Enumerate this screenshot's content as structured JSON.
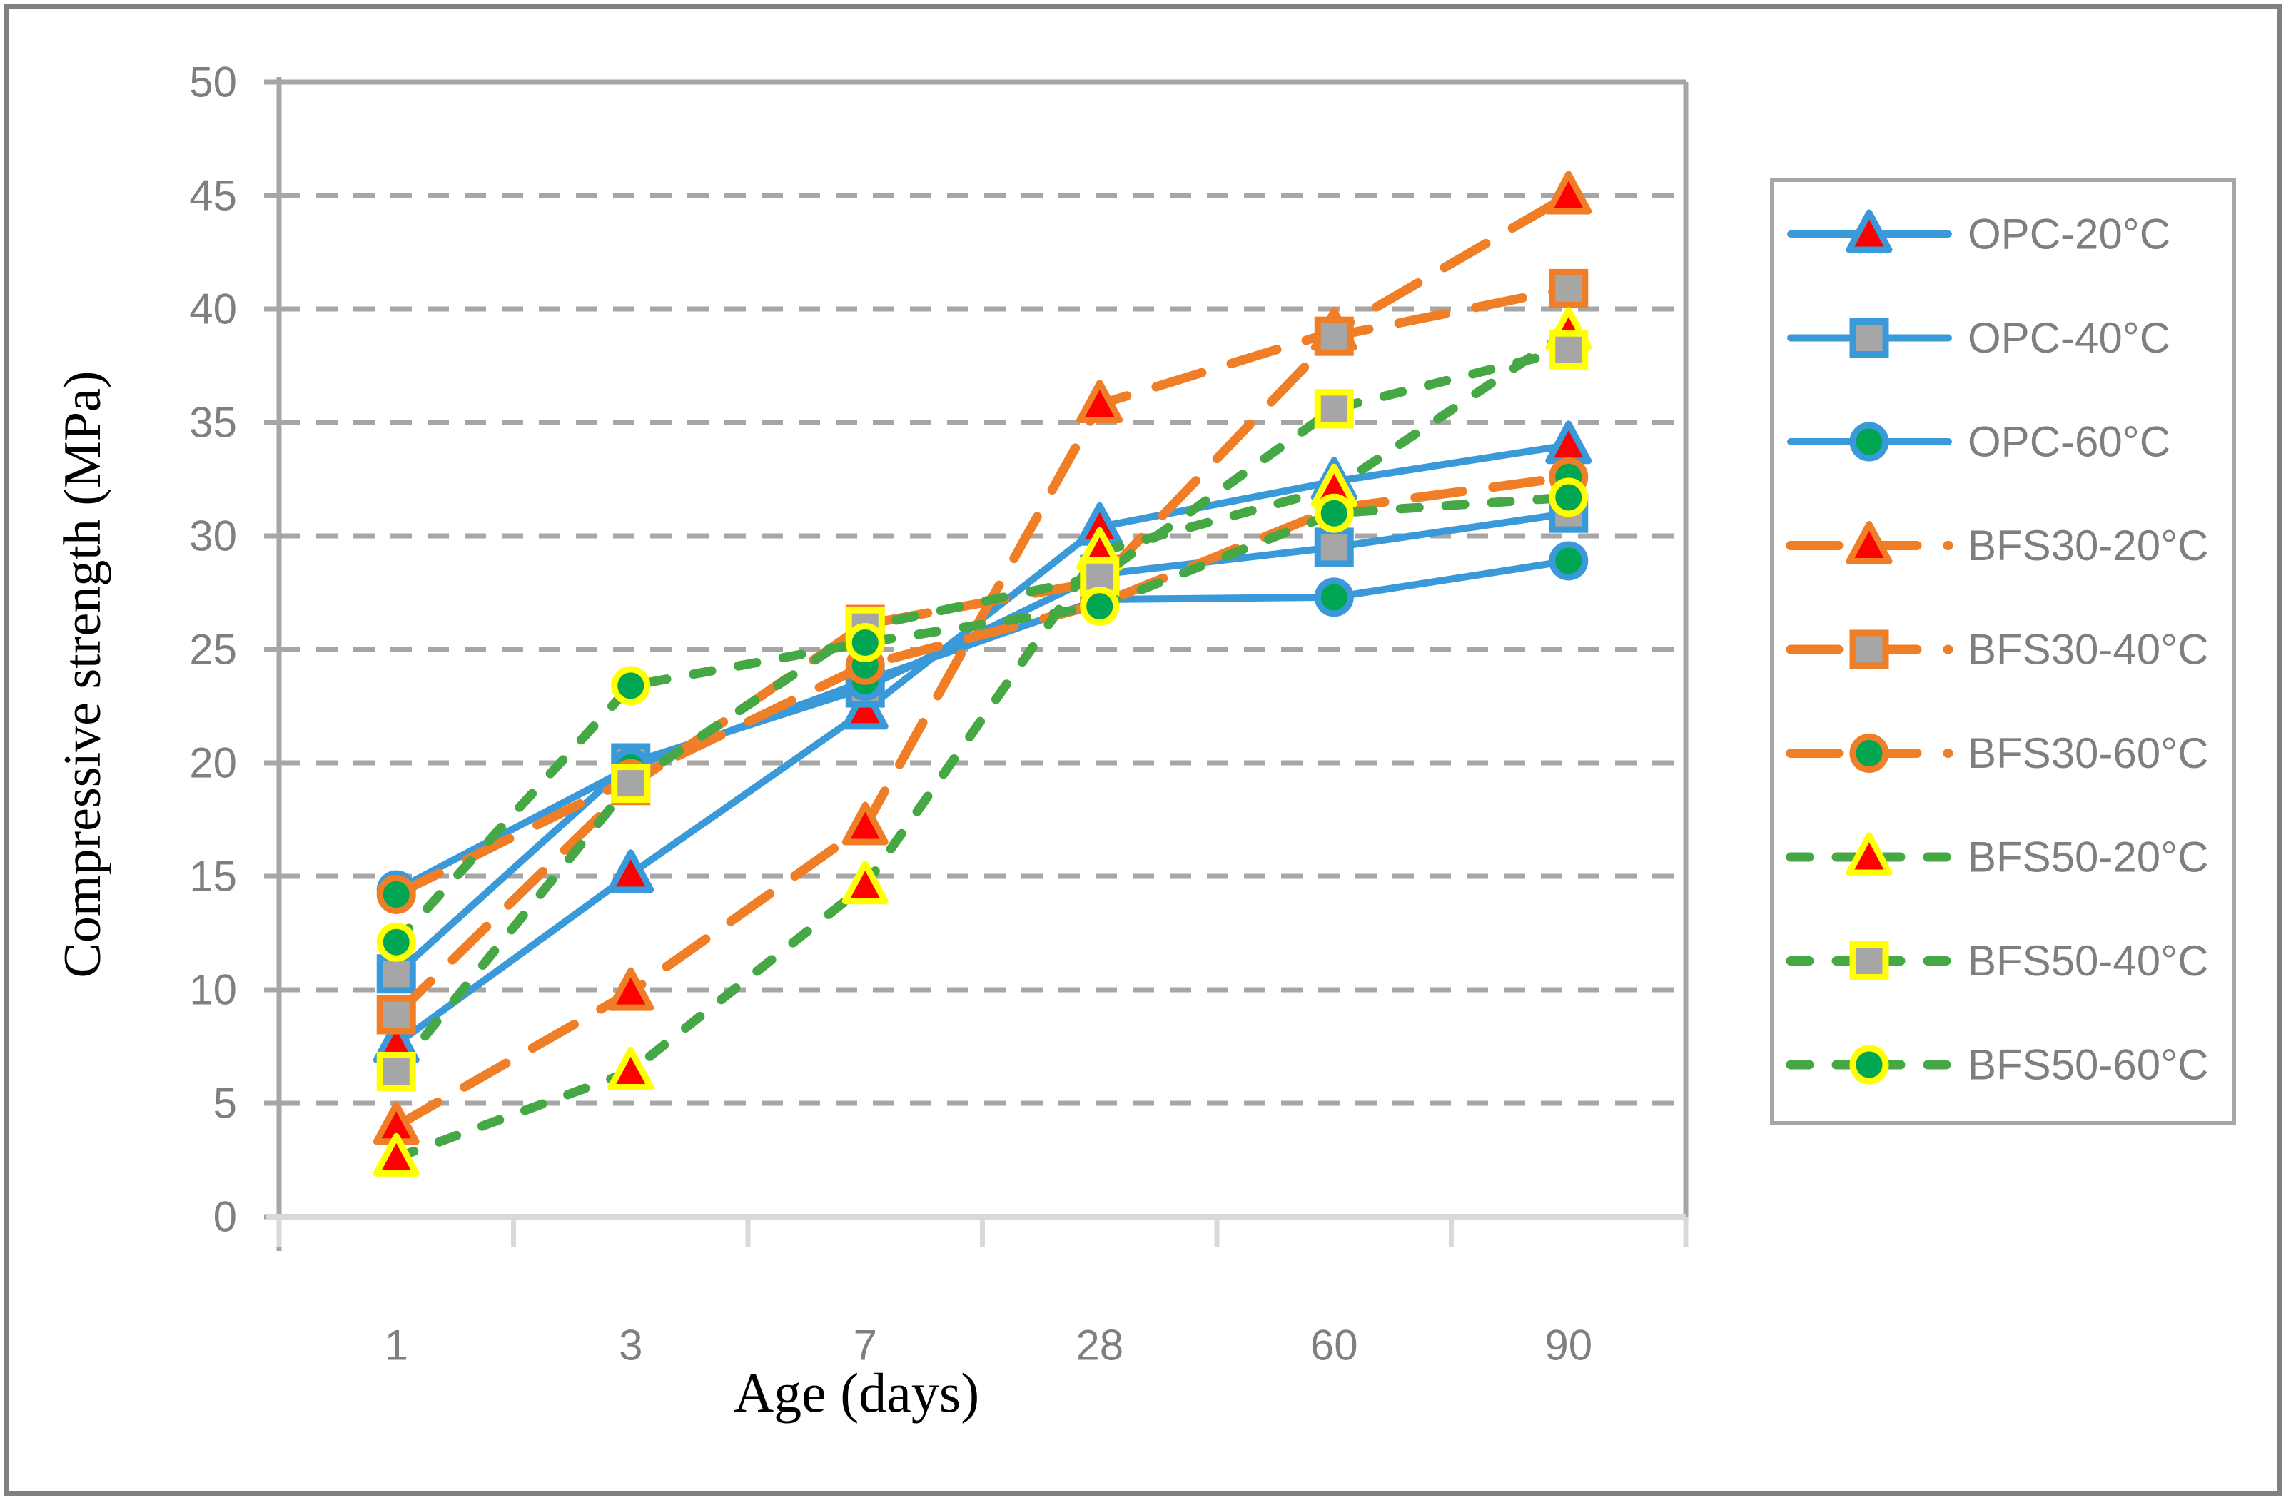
{
  "figure": {
    "border_color": "#808080",
    "background": "#ffffff"
  },
  "chart_data": {
    "type": "line",
    "title": "",
    "xlabel": "Age (days)",
    "ylabel": "Compressive strength (MPa)",
    "categories": [
      "1",
      "3",
      "7",
      "28",
      "60",
      "90"
    ],
    "ylim": [
      0,
      50
    ],
    "ytick_step": 5,
    "grid": "horizontal-dashed",
    "gridline_color": "#A6A6A6",
    "axis_text_color": "#7F7F7F",
    "legend_position": "right",
    "legend_border_color": "#A6A6A6",
    "series": [
      {
        "name": "OPC-20°C",
        "line_color": "#3A9AD9",
        "line_style": "solid",
        "marker": "triangle",
        "marker_fill": "#FF0000",
        "marker_border": "#3A9AD9",
        "values": [
          7.6,
          15.1,
          22.3,
          30.4,
          32.4,
          34.0
        ]
      },
      {
        "name": "OPC-40°C",
        "line_color": "#3A9AD9",
        "line_style": "solid",
        "marker": "square",
        "marker_fill": "#A6A6A6",
        "marker_border": "#3A9AD9",
        "values": [
          10.7,
          20.0,
          23.3,
          28.3,
          29.5,
          31.0
        ]
      },
      {
        "name": "OPC-60°C",
        "line_color": "#3A9AD9",
        "line_style": "solid",
        "marker": "circle",
        "marker_fill": "#00A651",
        "marker_border": "#3A9AD9",
        "values": [
          14.4,
          19.8,
          23.6,
          27.2,
          27.3,
          28.9
        ]
      },
      {
        "name": "BFS30-20°C",
        "line_color": "#F07E26",
        "line_style": "long-dash",
        "marker": "triangle",
        "marker_fill": "#FF0000",
        "marker_border": "#F07E26",
        "values": [
          4.0,
          9.9,
          17.2,
          35.8,
          39.0,
          45.0
        ]
      },
      {
        "name": "BFS30-40°C",
        "line_color": "#F07E26",
        "line_style": "long-dash",
        "marker": "square",
        "marker_fill": "#A6A6A6",
        "marker_border": "#F07E26",
        "values": [
          8.9,
          19.0,
          26.1,
          28.0,
          38.8,
          40.9
        ]
      },
      {
        "name": "BFS30-60°C",
        "line_color": "#F07E26",
        "line_style": "long-dash",
        "marker": "circle",
        "marker_fill": "#00A651",
        "marker_border": "#F07E26",
        "values": [
          14.2,
          19.3,
          24.3,
          27.0,
          31.2,
          32.6
        ]
      },
      {
        "name": "BFS50-20°C",
        "line_color": "#45A845",
        "line_style": "dash",
        "marker": "triangle",
        "marker_fill": "#FF0000",
        "marker_border": "#FFFF00",
        "values": [
          2.6,
          6.4,
          14.6,
          29.3,
          32.1,
          39.0
        ]
      },
      {
        "name": "BFS50-40°C",
        "line_color": "#45A845",
        "line_style": "dash",
        "marker": "square",
        "marker_fill": "#A6A6A6",
        "marker_border": "#FFFF00",
        "values": [
          6.4,
          19.1,
          26.0,
          28.2,
          35.6,
          38.2
        ]
      },
      {
        "name": "BFS50-60°C",
        "line_color": "#45A845",
        "line_style": "dash",
        "marker": "circle",
        "marker_fill": "#00A651",
        "marker_border": "#FFFF00",
        "values": [
          12.1,
          23.4,
          25.3,
          26.9,
          31.0,
          31.7
        ]
      }
    ]
  }
}
